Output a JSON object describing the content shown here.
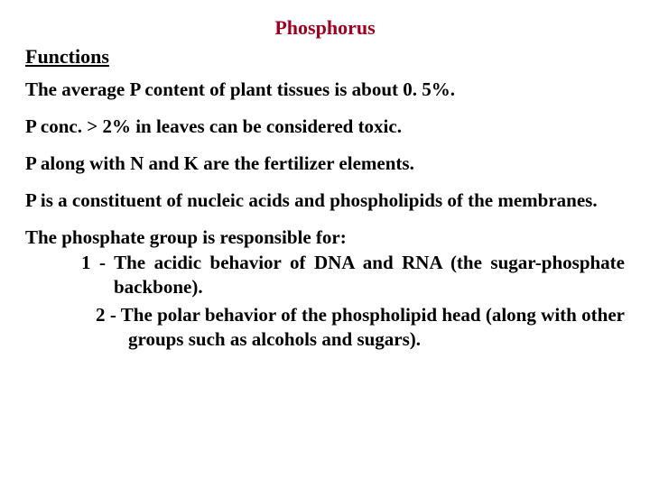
{
  "title": {
    "text": "Phosphorus",
    "color": "#a00020",
    "fontsize": 22
  },
  "subhead": {
    "text": "Functions",
    "color": "#000000",
    "fontsize": 22
  },
  "body": {
    "color": "#000000",
    "fontsize": 21
  },
  "paragraphs": {
    "p1": "The  average  P  content  of  plant  tissues is  about 0. 5%.",
    "p2": "P conc. > 2% in leaves can be considered toxic.",
    "p3": "P  along  with  N and K are the fertilizer elements.",
    "p4": "P is a constituent of nucleic acids and phospholipids of the membranes.",
    "group_lead": "The phosphate  group  is  responsible  for:",
    "li1": "1 - The acidic behavior of DNA and RNA (the sugar-phosphate   backbone).",
    "li2": "2 - The polar behavior of the phospholipid head (along with other groups such as alcohols and sugars)."
  }
}
